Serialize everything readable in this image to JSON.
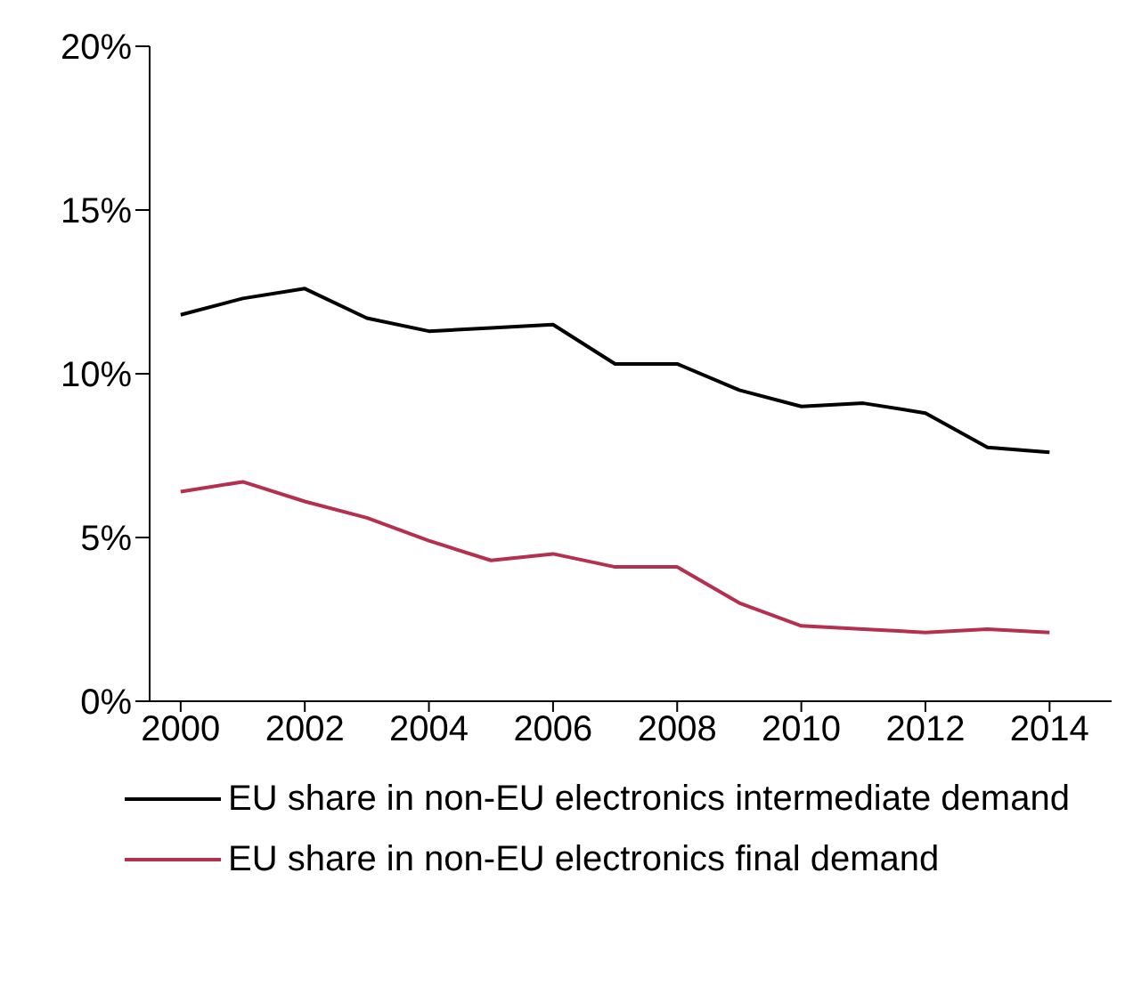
{
  "chart_data": {
    "type": "line",
    "x": [
      2000,
      2001,
      2002,
      2003,
      2004,
      2005,
      2006,
      2007,
      2008,
      2009,
      2010,
      2011,
      2012,
      2013,
      2014
    ],
    "series": [
      {
        "name": "EU share in non-EU electronics intermediate demand",
        "color": "#000000",
        "values": [
          11.8,
          12.3,
          12.6,
          11.7,
          11.3,
          11.4,
          11.5,
          10.3,
          10.3,
          9.5,
          9.0,
          9.1,
          8.8,
          7.75,
          7.6
        ]
      },
      {
        "name": "EU share in non-EU electronics final demand",
        "color": "#b5304f",
        "values": [
          6.4,
          6.7,
          6.1,
          5.6,
          4.9,
          4.3,
          4.5,
          4.1,
          4.1,
          3.0,
          2.3,
          2.2,
          2.1,
          2.2,
          2.1
        ]
      }
    ],
    "xlim": [
      1999.5,
      2015
    ],
    "xticks": [
      2000,
      2002,
      2004,
      2006,
      2008,
      2010,
      2012,
      2014
    ],
    "ylim": [
      0,
      20
    ],
    "yticks": [
      {
        "value": 0,
        "label": "0%"
      },
      {
        "value": 5,
        "label": "5%"
      },
      {
        "value": 10,
        "label": "10%"
      },
      {
        "value": 15,
        "label": "15%"
      },
      {
        "value": 20,
        "label": "20%"
      }
    ],
    "grid": false,
    "legend": "bottom",
    "marker": "none",
    "line_style": "solid"
  }
}
